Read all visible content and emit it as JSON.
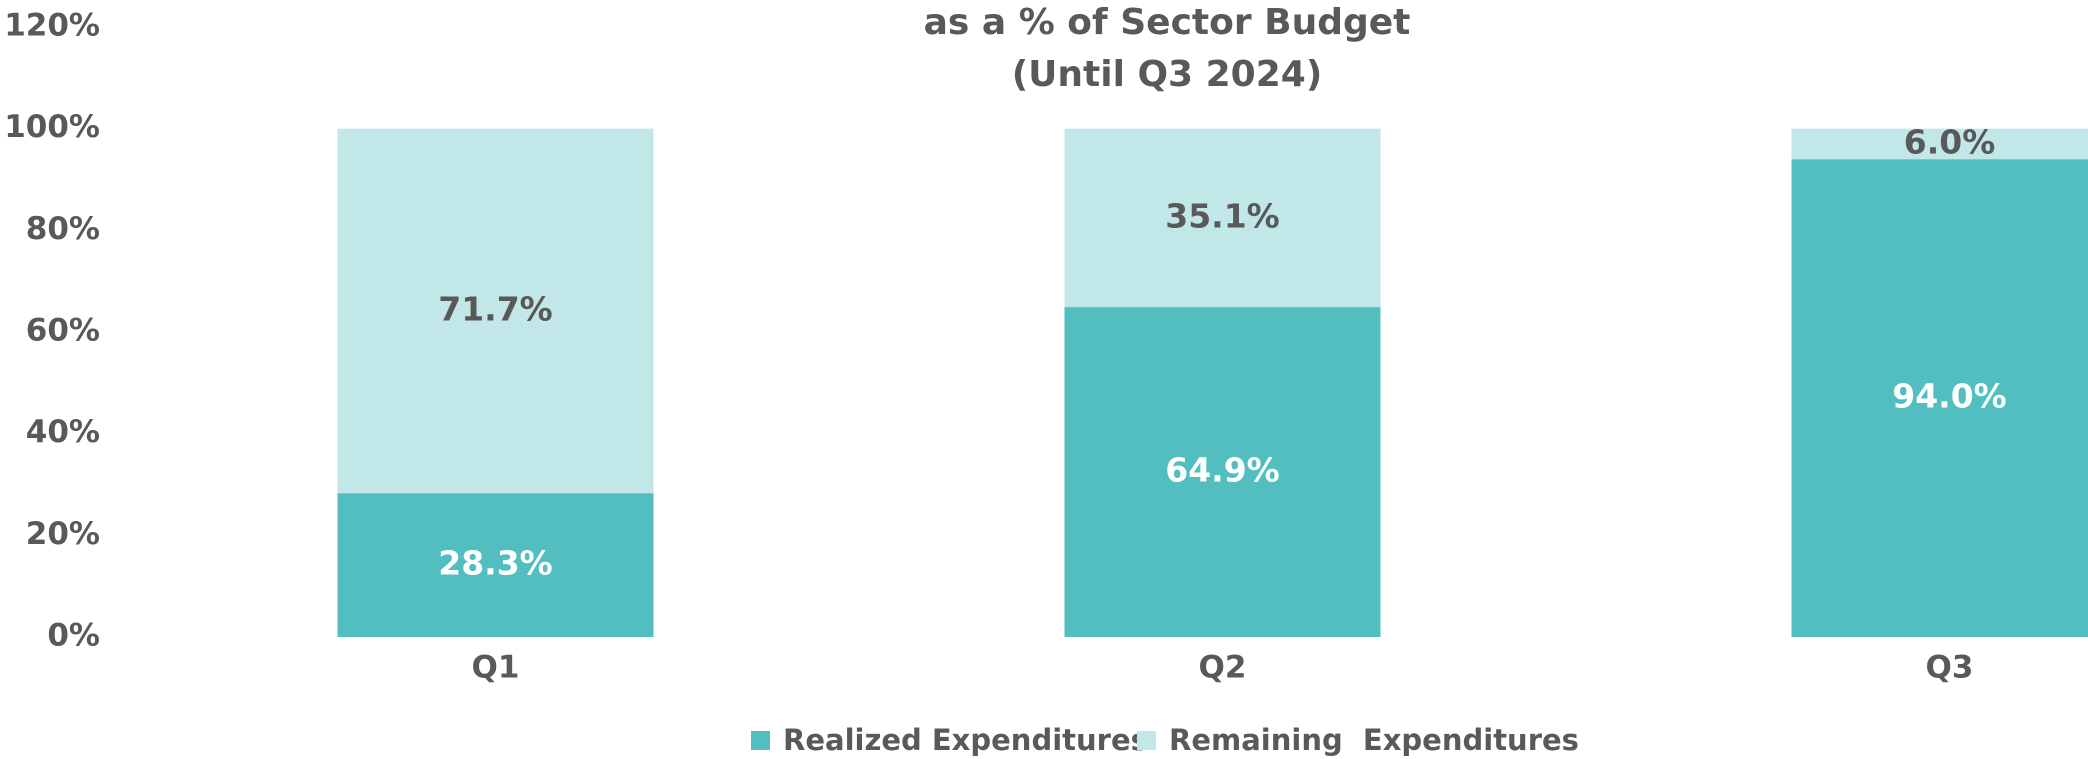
{
  "chart_data": {
    "type": "stacked_bar",
    "title": "as a % of Sector Budget",
    "subtitle": "(Until Q3 2024)",
    "categories": [
      "Q1",
      "Q2",
      "Q3"
    ],
    "series": [
      {
        "name": "Realized Expenditures",
        "color": "#52bec0",
        "label_color": "#ffffff",
        "values": [
          28.3,
          64.9,
          94.0
        ],
        "value_labels": [
          "28.3%",
          "64.9%",
          "94.0%"
        ]
      },
      {
        "name": "Remaining  Expenditures",
        "color": "#c1e7e8",
        "label_color": "#595959",
        "values": [
          71.7,
          35.1,
          6.0
        ],
        "value_labels": [
          "71.7%",
          "35.1%",
          "6.0%"
        ]
      }
    ],
    "ylim": [
      0,
      120
    ],
    "yticks": [
      {
        "value": 0,
        "label": "0%"
      },
      {
        "value": 20,
        "label": "20%"
      },
      {
        "value": 40,
        "label": "40%"
      },
      {
        "value": 60,
        "label": "60%"
      },
      {
        "value": 80,
        "label": "80%"
      },
      {
        "value": 100,
        "label": "100%"
      },
      {
        "value": 120,
        "label": "120%"
      }
    ],
    "grid": false,
    "legend": "bottom"
  }
}
